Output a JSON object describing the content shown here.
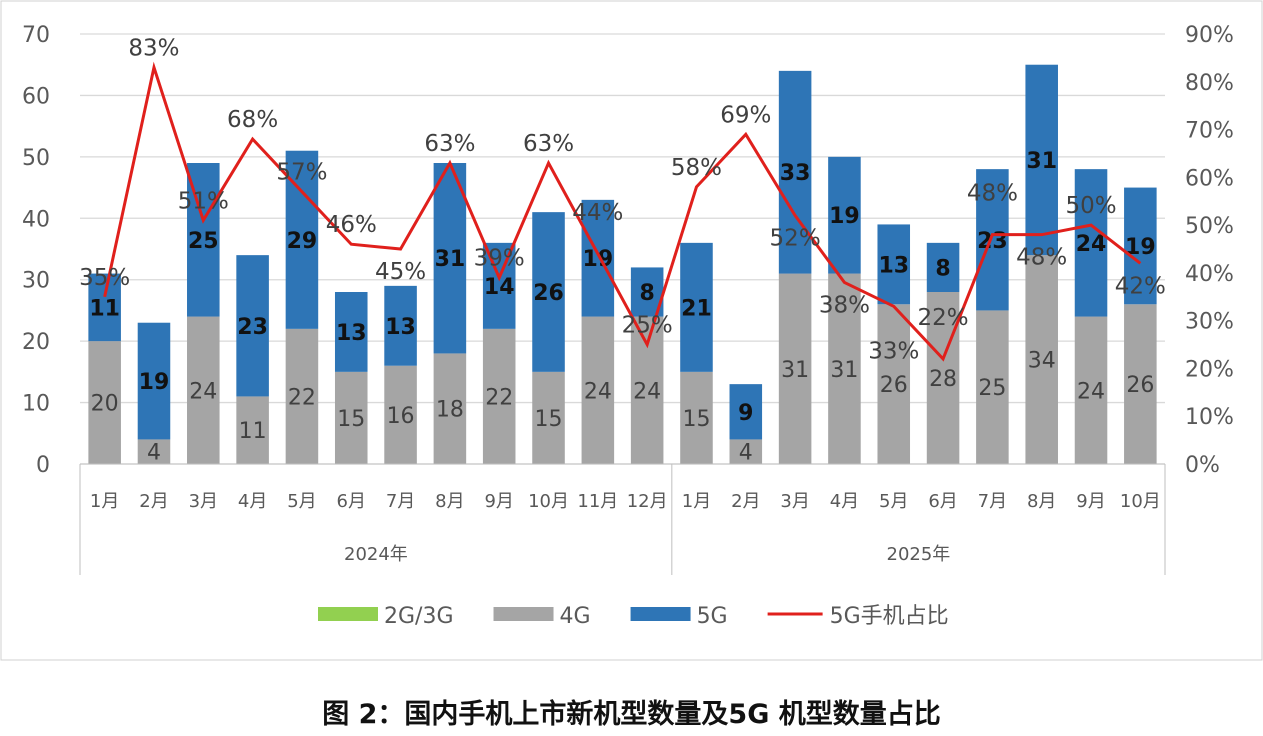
{
  "chart_data": {
    "type": "bar",
    "title": "图 2：国内手机上市新机型数量及5G 机型数量占比",
    "groups": [
      {
        "label": "2024年",
        "categories": [
          "1月",
          "2月",
          "3月",
          "4月",
          "5月",
          "6月",
          "7月",
          "8月",
          "9月",
          "10月",
          "11月",
          "12月"
        ]
      },
      {
        "label": "2025年",
        "categories": [
          "1月",
          "2月",
          "3月",
          "4月",
          "5月",
          "6月",
          "7月",
          "8月",
          "9月",
          "10月"
        ]
      }
    ],
    "series": [
      {
        "name": "2G/3G",
        "type": "bar",
        "color": "#92d050",
        "values": [
          0,
          0,
          0,
          0,
          0,
          0,
          0,
          0,
          0,
          0,
          0,
          0,
          0,
          0,
          0,
          0,
          0,
          0,
          0,
          0,
          0,
          0
        ]
      },
      {
        "name": "4G",
        "type": "bar",
        "color": "#a5a5a5",
        "values": [
          20,
          4,
          24,
          11,
          22,
          15,
          16,
          18,
          22,
          15,
          24,
          24,
          15,
          4,
          31,
          31,
          26,
          28,
          25,
          34,
          24,
          26
        ]
      },
      {
        "name": "5G",
        "type": "bar",
        "color": "#2e75b6",
        "values": [
          11,
          19,
          25,
          23,
          29,
          13,
          13,
          31,
          14,
          26,
          19,
          8,
          21,
          9,
          33,
          19,
          13,
          8,
          23,
          31,
          24,
          19
        ]
      },
      {
        "name": "5G手机占比",
        "type": "line",
        "axis": "right",
        "color": "#e0201c",
        "values": [
          35,
          83,
          51,
          68,
          57,
          46,
          45,
          63,
          39,
          63,
          44,
          25,
          58,
          69,
          52,
          38,
          33,
          22,
          48,
          48,
          50,
          42
        ]
      }
    ],
    "ylim": [
      0,
      70
    ],
    "yticks": [
      0,
      10,
      20,
      30,
      40,
      50,
      60,
      70
    ],
    "y2lim": [
      0,
      90
    ],
    "y2ticks": [
      "0%",
      "10%",
      "20%",
      "30%",
      "40%",
      "50%",
      "60%",
      "70%",
      "80%",
      "90%"
    ],
    "grid": true,
    "legend": "bottom"
  }
}
